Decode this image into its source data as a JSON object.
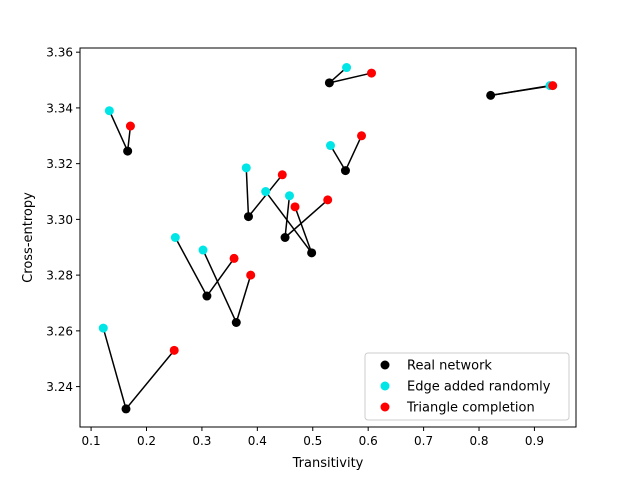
{
  "chart_data": {
    "type": "scatter",
    "title": "",
    "xlabel": "Transitivity",
    "ylabel": "Cross-entropy",
    "xlim": [
      0.08,
      0.975
    ],
    "ylim": [
      3.2255,
      3.3615
    ],
    "xticks": [
      0.1,
      0.2,
      0.3,
      0.4,
      0.5,
      0.6,
      0.7,
      0.8,
      0.9
    ],
    "xtick_labels": [
      "0.1",
      "0.2",
      "0.3",
      "0.4",
      "0.5",
      "0.6",
      "0.7",
      "0.8",
      "0.9"
    ],
    "yticks": [
      3.24,
      3.26,
      3.28,
      3.3,
      3.32,
      3.34,
      3.36
    ],
    "ytick_labels": [
      "3.24",
      "3.26",
      "3.28",
      "3.30",
      "3.32",
      "3.34",
      "3.36"
    ],
    "grid": false,
    "legend_position": "bottom-right",
    "series": [
      {
        "name": "Real network",
        "color": "#000000"
      },
      {
        "name": "Edge added randomly",
        "color": "#00e5e5"
      },
      {
        "name": "Triangle completion",
        "color": "#ff0000"
      }
    ],
    "groups": [
      {
        "real": [
          0.163,
          3.232
        ],
        "random": [
          0.122,
          3.261
        ],
        "triangle": [
          0.25,
          3.253
        ]
      },
      {
        "real": [
          0.362,
          3.263
        ],
        "random": [
          0.302,
          3.289
        ],
        "triangle": [
          0.388,
          3.28
        ]
      },
      {
        "real": [
          0.309,
          3.2725
        ],
        "random": [
          0.252,
          3.2935
        ],
        "triangle": [
          0.358,
          3.286
        ]
      },
      {
        "real": [
          0.498,
          3.288
        ],
        "random": [
          0.415,
          3.31
        ],
        "triangle": [
          0.468,
          3.3045
        ]
      },
      {
        "real": [
          0.45,
          3.2935
        ],
        "random": [
          0.458,
          3.3085
        ],
        "triangle": [
          0.527,
          3.307
        ]
      },
      {
        "real": [
          0.384,
          3.301
        ],
        "random": [
          0.38,
          3.3185
        ],
        "triangle": [
          0.445,
          3.316
        ]
      },
      {
        "real": [
          0.166,
          3.3245
        ],
        "random": [
          0.133,
          3.339
        ],
        "triangle": [
          0.171,
          3.3335
        ]
      },
      {
        "real": [
          0.559,
          3.3175
        ],
        "random": [
          0.532,
          3.3265
        ],
        "triangle": [
          0.588,
          3.33
        ]
      },
      {
        "real": [
          0.53,
          3.349
        ],
        "random": [
          0.561,
          3.3545
        ],
        "triangle": [
          0.606,
          3.3525
        ]
      },
      {
        "real": [
          0.821,
          3.3445
        ],
        "random": [
          0.928,
          3.348
        ],
        "triangle": [
          0.933,
          3.348
        ]
      }
    ]
  }
}
